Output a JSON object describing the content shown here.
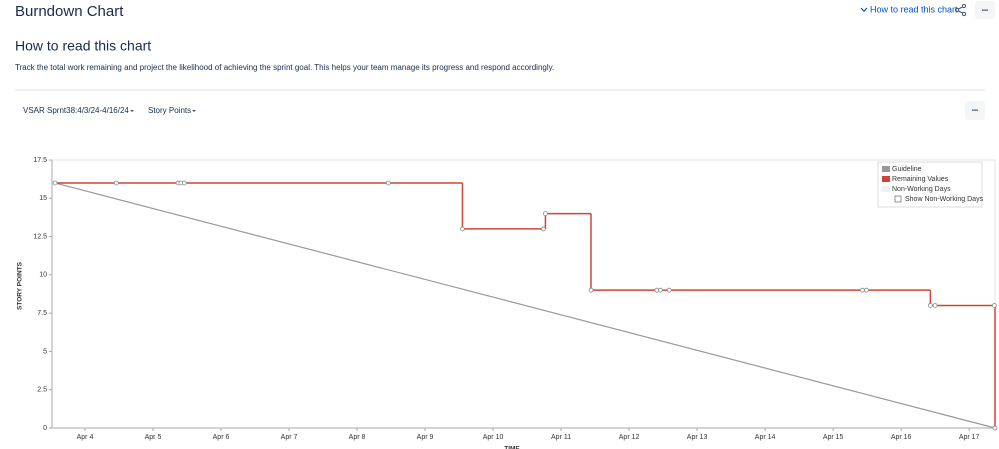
{
  "header": {
    "title": "Burndown Chart",
    "help_link": "How to read this chart",
    "more": "•••"
  },
  "intro": {
    "heading": "How to read this chart",
    "description": "Track the total work remaining and project the likelihood of achieving the sprint goal. This helps your team manage its progress and respond accordingly."
  },
  "toolbar": {
    "sprint": "VSAR Sprnt38:4/3/24-4/16/24",
    "estimate": "Story Points",
    "more": "•••"
  },
  "chart_data": {
    "type": "line",
    "ylabel": "STORY POINTS",
    "xlabel": "TIME",
    "xlim": [
      3.515,
      17.38
    ],
    "ylim": [
      0,
      17.5
    ],
    "xticks": [
      {
        "value": 4,
        "label": "Apr 4"
      },
      {
        "value": 5,
        "label": "Apr 5"
      },
      {
        "value": 6,
        "label": "Apr 6"
      },
      {
        "value": 7,
        "label": "Apr 7"
      },
      {
        "value": 8,
        "label": "Apr 8"
      },
      {
        "value": 9,
        "label": "Apr 9"
      },
      {
        "value": 10,
        "label": "Apr 10"
      },
      {
        "value": 11,
        "label": "Apr 11"
      },
      {
        "value": 12,
        "label": "Apr 12"
      },
      {
        "value": 13,
        "label": "Apr 13"
      },
      {
        "value": 14,
        "label": "Apr 14"
      },
      {
        "value": 15,
        "label": "Apr 15"
      },
      {
        "value": 16,
        "label": "Apr 16"
      },
      {
        "value": 17,
        "label": "Apr 17"
      }
    ],
    "yticks": [
      0,
      2.5,
      5,
      7.5,
      10,
      12.5,
      15,
      17.5
    ],
    "series": [
      {
        "name": "Guideline",
        "color": "#999999",
        "x": [
          3.56,
          17.38
        ],
        "values": [
          16,
          0
        ]
      },
      {
        "name": "Remaining Values",
        "color": "#d04437",
        "step": true,
        "x": [
          3.56,
          4.46,
          5.37,
          5.41,
          5.46,
          8.46,
          9.55,
          10.74,
          10.77,
          11.44,
          12.41,
          12.46,
          12.59,
          15.43,
          15.49,
          16.43,
          16.5,
          17.37,
          17.38
        ],
        "values": [
          16,
          16,
          16,
          16,
          16,
          16,
          13,
          13,
          14,
          9,
          9,
          9,
          9,
          9,
          9,
          8,
          8,
          8,
          0
        ]
      }
    ],
    "non_working_days": "Non-Working Days",
    "show_non_working_days": "Show Non-Working Days",
    "legend": "top-right"
  }
}
